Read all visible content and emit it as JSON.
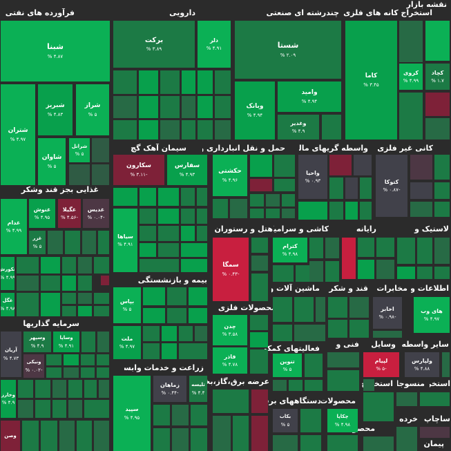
{
  "map_title": "نقشه بازار",
  "sectors": [
    {
      "id": "oil",
      "label": "فرآورده های نفتی"
    },
    {
      "id": "pharma",
      "label": "دارویی"
    },
    {
      "id": "multi",
      "label": "چندرشته ای صنعتی"
    },
    {
      "id": "metal_ore",
      "label": "استخراج کانه های فلزی"
    },
    {
      "id": "cement",
      "label": "سیمان آهک گچ"
    },
    {
      "id": "transport",
      "label": "حمل و نقل انبارداری و"
    },
    {
      "id": "finance",
      "label": "واسطه گریهای مالی و"
    },
    {
      "id": "nonmetal",
      "label": "کانی غیر فلزی"
    },
    {
      "id": "food",
      "label": "غذایی بجز قند وشکر"
    },
    {
      "id": "hotel",
      "label": "هتل و رستوران"
    },
    {
      "id": "tile",
      "label": "کاشی و سرامیک"
    },
    {
      "id": "computer",
      "label": "رایانه"
    },
    {
      "id": "rubber",
      "label": "لاستیک و"
    },
    {
      "id": "insurance",
      "label": "بیمه و بازنشستگی"
    },
    {
      "id": "machinery",
      "label": "ماشین آلات و"
    },
    {
      "id": "sugar",
      "label": "قند و شکر"
    },
    {
      "id": "telecom",
      "label": "مخابرات"
    },
    {
      "id": "it",
      "label": "اطلاعات و"
    },
    {
      "id": "metal_prod",
      "label": "محصولات فلزی"
    },
    {
      "id": "invest",
      "label": "سرمایه گذاریها"
    },
    {
      "id": "aux",
      "label": "فعالیتهای کمکی"
    },
    {
      "id": "tech",
      "label": "فنی و"
    },
    {
      "id": "vehicle",
      "label": "وسایل"
    },
    {
      "id": "other_inter",
      "label": "سایر واسطه"
    },
    {
      "id": "agri",
      "label": "زراعت و خدمات وابسته"
    },
    {
      "id": "electric",
      "label": "عرضه برق،گاز،بخار"
    },
    {
      "id": "appliances",
      "label": "دستگاههای برقی"
    },
    {
      "id": "products",
      "label": "محصولات"
    },
    {
      "id": "extraction",
      "label": "استخراج"
    },
    {
      "id": "textile",
      "label": "منسوجا"
    },
    {
      "id": "retail",
      "label": "خرده"
    },
    {
      "id": "printing",
      "label": "چاپ"
    },
    {
      "id": "other",
      "label": "سایر"
    },
    {
      "id": "contract",
      "label": "پیمان"
    },
    {
      "id": "extraction2",
      "label": "استخرا"
    }
  ],
  "tiles": {
    "shana": {
      "name": "شبنا",
      "pct": "۴.۸۷ %"
    },
    "barekat": {
      "name": "برکت",
      "pct": "۳.۸۹ %"
    },
    "dalar": {
      "name": "دلر",
      "pct": "۴.۹۱ %"
    },
    "shasta": {
      "name": "شستا",
      "pct": "۲.۰۹ %"
    },
    "kama": {
      "name": "کاما",
      "pct": "۳.۴۵ %"
    },
    "kroy": {
      "name": "کروی",
      "pct": "۴.۹۹ %"
    },
    "kchad": {
      "name": "کچاد",
      "pct": "۱.۷ %"
    },
    "shtran": {
      "name": "شتران",
      "pct": "۴.۹۷ %"
    },
    "shbriz": {
      "name": "شبریز",
      "pct": "۴.۸۳ %"
    },
    "shraz": {
      "name": "شراز",
      "pct": "۵ %"
    },
    "shavan": {
      "name": "شاوان",
      "pct": "۵ %"
    },
    "shranl": {
      "name": "شرانل",
      "pct": "۵ %"
    },
    "vamid": {
      "name": "وامید",
      "pct": "۴.۹۴ %"
    },
    "vbank": {
      "name": "وبانک",
      "pct": "۴.۹۴ %"
    },
    "vghadir": {
      "name": "وغدیر",
      "pct": "۴.۹ %"
    },
    "sekaron": {
      "name": "سکارون",
      "pct": "-۳.۱۱ %"
    },
    "safars": {
      "name": "سفارس",
      "pct": "۴.۹۳ %"
    },
    "hakashti": {
      "name": "حکشتی",
      "pct": "۴.۹۶ %"
    },
    "vahia": {
      "name": "واحیا",
      "pct": "۰.۹۳ %"
    },
    "ktoka": {
      "name": "کتوکا",
      "pct": "-۰.۸۷ %"
    },
    "ghdam": {
      "name": "غدام",
      "pct": "۴.۹۹ %"
    },
    "ghnosh": {
      "name": "غنوش",
      "pct": "۴.۹۵ %"
    },
    "ghgila": {
      "name": "غگیلا",
      "pct": "-۴.۵۶ %"
    },
    "ghdis": {
      "name": "غدیس",
      "pct": "-۰.۰۴ %"
    },
    "ghzer": {
      "name": "غزر",
      "pct": "۵ %"
    },
    "ghkorosh": {
      "name": "غکورش",
      "pct": "۴.۹۹ %"
    },
    "ghgol": {
      "name": "غگل",
      "pct": "۴.۹۸ %"
    },
    "sihai": {
      "name": "سیاها",
      "pct": "۴.۹۱ %"
    },
    "semga": {
      "name": "سمگا",
      "pct": "-۰.۴۳ %"
    },
    "ktram": {
      "name": "کترام",
      "pct": "۴.۹۸ %"
    },
    "bayas": {
      "name": "بپاس",
      "pct": "۵ %"
    },
    "mellat": {
      "name": "ملت",
      "pct": "۴.۹۷ %"
    },
    "chadan": {
      "name": "چدن",
      "pct": "۳.۵۸ %"
    },
    "fader": {
      "name": "فاذر",
      "pct": "۴.۷۸ %"
    },
    "akhaber": {
      "name": "اخابر",
      "pct": "-۰.۹۸ %"
    },
    "hayweb": {
      "name": "های وب",
      "pct": "۴.۹۷ %"
    },
    "arian": {
      "name": "آریان",
      "pct": "۴.۷۳ %"
    },
    "vsepahr": {
      "name": "وسپهر",
      "pct": "۴.۹ %"
    },
    "vsapa": {
      "name": "وساپا",
      "pct": "۴.۹۱ %"
    },
    "vnik": {
      "name": "ونیکی",
      "pct": "-۰.۰۲ %"
    },
    "vkharazm": {
      "name": "وخارز",
      "pct": "۴.۹ %"
    },
    "vsin": {
      "name": "وصن",
      "pct": ""
    },
    "tanvin": {
      "name": "تنوین",
      "pct": "۵ %"
    },
    "lipam": {
      "name": "لپیام",
      "pct": "-۵ %"
    },
    "vparis": {
      "name": "ولپارس",
      "pct": "۴.۸۸ %"
    },
    "zamahan": {
      "name": "زماهان",
      "pct": "-۰.۴۴ %"
    },
    "tlise": {
      "name": "تلیسه",
      "pct": "۴.۴ %"
    },
    "sepid": {
      "name": "سپید",
      "pct": "۴.۹۵ %"
    },
    "bkab": {
      "name": "بکاب",
      "pct": "۵ %"
    },
    "chkapa": {
      "name": "چکاپا",
      "pct": "۴.۹۸ %"
    }
  }
}
